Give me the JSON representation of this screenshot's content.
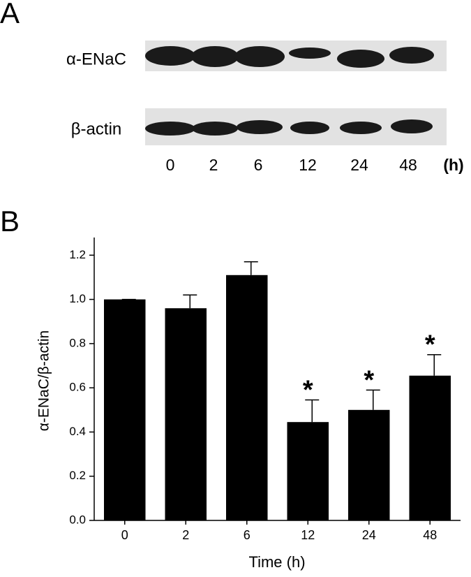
{
  "panel_a": {
    "label": "A",
    "rows": [
      "α-ENaC",
      "β-actin"
    ],
    "lanes": [
      "0",
      "2",
      "6",
      "12",
      "24",
      "48"
    ],
    "unit": "(h)"
  },
  "chart_data": {
    "type": "bar",
    "panel_label": "B",
    "x_label": "Time (h)",
    "y_label": "α-ENaC/β-actin",
    "categories": [
      "0",
      "2",
      "6",
      "12",
      "24",
      "48"
    ],
    "values": [
      1.0,
      0.96,
      1.11,
      0.445,
      0.5,
      0.655
    ],
    "errors": [
      0,
      0.06,
      0.06,
      0.1,
      0.09,
      0.095
    ],
    "annotations": [
      null,
      null,
      null,
      "*",
      "*",
      "*"
    ],
    "color": "#000000",
    "ylim": [
      0,
      1.28
    ],
    "yticks": [
      {
        "value": 0,
        "label": "0.0"
      },
      {
        "value": 0.2,
        "label": "0.2"
      },
      {
        "value": 0.4,
        "label": "0.4"
      },
      {
        "value": 0.6,
        "label": "0.6"
      },
      {
        "value": 0.8,
        "label": "0.8"
      },
      {
        "value": 1.0,
        "label": "1.0"
      },
      {
        "value": 1.2,
        "label": "1.2"
      }
    ]
  }
}
